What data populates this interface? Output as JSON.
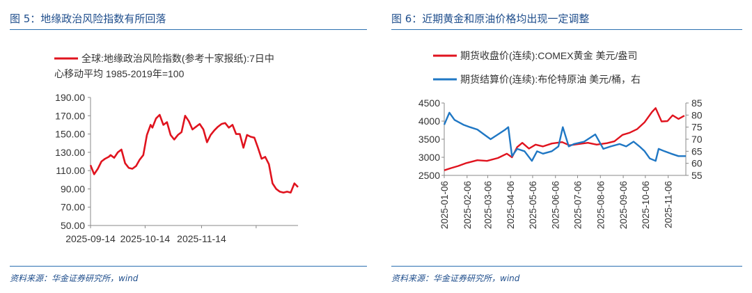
{
  "figures": [
    {
      "title": "图 5：地缘政治风险指数有所回落",
      "source": "资料来源：华金证券研究所，wind"
    },
    {
      "title": "图 6：近期黄金和原油价格均出现一定调整",
      "source": "资料来源：华金证券研究所，wind"
    }
  ],
  "chart_data": [
    {
      "type": "line",
      "title": "",
      "legend_placement": "top",
      "series": [
        {
          "name": "全球:地缘政治风险指数(参考十家报纸):7日中心移动平均 1985-2019年=100",
          "name_lines": [
            "全球:地缘政治风险指数(参考十家报纸):7日中",
            "心移动平均 1985-2019年=100"
          ],
          "color": "#e0131e",
          "points": [
            [
              "2025-09-14",
              116
            ],
            [
              "2025-09-16",
              106
            ],
            [
              "2025-09-18",
              112
            ],
            [
              "2025-09-20",
              120
            ],
            [
              "2025-09-22",
              123
            ],
            [
              "2025-09-24",
              125
            ],
            [
              "2025-09-25",
              127
            ],
            [
              "2025-09-27",
              124
            ],
            [
              "2025-09-29",
              130
            ],
            [
              "2025-10-01",
              133
            ],
            [
              "2025-10-03",
              118
            ],
            [
              "2025-10-05",
              113
            ],
            [
              "2025-10-07",
              112
            ],
            [
              "2025-10-09",
              115
            ],
            [
              "2025-10-11",
              122
            ],
            [
              "2025-10-13",
              127
            ],
            [
              "2025-10-15",
              149
            ],
            [
              "2025-10-17",
              160
            ],
            [
              "2025-10-18",
              157
            ],
            [
              "2025-10-20",
              167
            ],
            [
              "2025-10-22",
              171
            ],
            [
              "2025-10-24",
              160
            ],
            [
              "2025-10-26",
              163
            ],
            [
              "2025-10-28",
              149
            ],
            [
              "2025-10-30",
              144
            ],
            [
              "2025-11-01",
              149
            ],
            [
              "2025-11-03",
              152
            ],
            [
              "2025-11-05",
              170
            ],
            [
              "2025-11-07",
              164
            ],
            [
              "2025-11-09",
              155
            ],
            [
              "2025-11-11",
              158
            ],
            [
              "2025-11-13",
              161
            ],
            [
              "2025-11-15",
              155
            ],
            [
              "2025-11-17",
              141
            ],
            [
              "2025-11-19",
              149
            ],
            [
              "2025-11-21",
              154
            ],
            [
              "2025-11-23",
              158
            ],
            [
              "2025-11-25",
              161
            ],
            [
              "2025-11-27",
              162
            ],
            [
              "2025-11-29",
              157
            ],
            [
              "2025-12-01",
              160
            ],
            [
              "2025-12-03",
              150
            ],
            [
              "2025-12-05",
              150
            ],
            [
              "2025-12-07",
              135
            ],
            [
              "2025-12-09",
              149
            ],
            [
              "2025-12-11",
              147
            ],
            [
              "2025-12-13",
              146
            ],
            [
              "2025-12-15",
              135
            ],
            [
              "2025-12-17",
              123
            ],
            [
              "2025-12-19",
              125
            ],
            [
              "2025-12-21",
              117
            ],
            [
              "2025-12-23",
              96
            ],
            [
              "2025-12-25",
              90
            ],
            [
              "2025-12-27",
              87
            ],
            [
              "2025-12-29",
              86
            ],
            [
              "2025-12-31",
              87
            ],
            [
              "2026-01-02",
              86
            ],
            [
              "2026-01-04",
              96
            ],
            [
              "2026-01-06",
              92
            ]
          ]
        }
      ],
      "x_ticks": [
        "2025-09-14",
        "2025-10-14",
        "2025-11-14"
      ],
      "ylim": [
        50,
        190
      ],
      "y_ticks": [
        "190.00",
        "170.00",
        "150.00",
        "130.00",
        "110.00",
        "90.00",
        "70.00",
        "50.00"
      ],
      "grid": false
    },
    {
      "type": "line",
      "title": "",
      "legend_placement": "top",
      "series": [
        {
          "name": "期货收盘价(连续):COMEX黄金 美元/盎司",
          "color": "#e0131e",
          "axis": "left",
          "points": [
            [
              "2025-01-06",
              2640
            ],
            [
              "2025-01-15",
              2700
            ],
            [
              "2025-01-25",
              2760
            ],
            [
              "2025-02-05",
              2840
            ],
            [
              "2025-02-20",
              2920
            ],
            [
              "2025-03-05",
              2900
            ],
            [
              "2025-03-20",
              2980
            ],
            [
              "2025-04-01",
              3100
            ],
            [
              "2025-04-08",
              3000
            ],
            [
              "2025-04-15",
              3280
            ],
            [
              "2025-04-22",
              3400
            ],
            [
              "2025-05-01",
              3240
            ],
            [
              "2025-05-10",
              3350
            ],
            [
              "2025-05-20",
              3300
            ],
            [
              "2025-06-01",
              3380
            ],
            [
              "2025-06-15",
              3420
            ],
            [
              "2025-06-25",
              3330
            ],
            [
              "2025-07-05",
              3360
            ],
            [
              "2025-07-20",
              3400
            ],
            [
              "2025-08-01",
              3350
            ],
            [
              "2025-08-15",
              3390
            ],
            [
              "2025-08-25",
              3440
            ],
            [
              "2025-09-05",
              3620
            ],
            [
              "2025-09-15",
              3680
            ],
            [
              "2025-09-25",
              3780
            ],
            [
              "2025-10-05",
              3970
            ],
            [
              "2025-10-15",
              4250
            ],
            [
              "2025-10-20",
              4360
            ],
            [
              "2025-10-28",
              3990
            ],
            [
              "2025-11-05",
              4000
            ],
            [
              "2025-11-12",
              4160
            ],
            [
              "2025-11-20",
              4060
            ],
            [
              "2025-11-28",
              4150
            ]
          ]
        },
        {
          "name": "期货结算价(连续):布伦特原油 美元/桶，右",
          "color": "#1f77c4",
          "axis": "right",
          "points": [
            [
              "2025-01-06",
              76
            ],
            [
              "2025-01-13",
              81
            ],
            [
              "2025-01-20",
              78
            ],
            [
              "2025-02-01",
              76
            ],
            [
              "2025-02-10",
              75
            ],
            [
              "2025-02-20",
              74
            ],
            [
              "2025-03-01",
              72
            ],
            [
              "2025-03-10",
              70
            ],
            [
              "2025-03-20",
              72
            ],
            [
              "2025-03-30",
              74
            ],
            [
              "2025-04-03",
              75
            ],
            [
              "2025-04-08",
              63
            ],
            [
              "2025-04-15",
              66
            ],
            [
              "2025-04-25",
              65
            ],
            [
              "2025-05-05",
              61
            ],
            [
              "2025-05-12",
              65
            ],
            [
              "2025-05-20",
              64
            ],
            [
              "2025-06-01",
              65
            ],
            [
              "2025-06-10",
              67
            ],
            [
              "2025-06-16",
              75
            ],
            [
              "2025-06-24",
              67
            ],
            [
              "2025-07-01",
              68
            ],
            [
              "2025-07-15",
              69
            ],
            [
              "2025-07-30",
              72
            ],
            [
              "2025-08-10",
              66
            ],
            [
              "2025-08-20",
              67
            ],
            [
              "2025-09-01",
              68
            ],
            [
              "2025-09-10",
              67
            ],
            [
              "2025-09-20",
              69
            ],
            [
              "2025-09-28",
              67
            ],
            [
              "2025-10-05",
              65
            ],
            [
              "2025-10-12",
              62
            ],
            [
              "2025-10-20",
              61
            ],
            [
              "2025-10-24",
              66
            ],
            [
              "2025-11-01",
              65
            ],
            [
              "2025-11-10",
              64
            ],
            [
              "2025-11-20",
              63
            ],
            [
              "2025-11-30",
              63
            ]
          ]
        }
      ],
      "x_ticks": [
        "2025-01-06",
        "2025-02-06",
        "2025-03-06",
        "2025-04-06",
        "2025-05-06",
        "2025-06-06",
        "2025-07-06",
        "2025-08-06",
        "2025-09-06",
        "2025-10-06",
        "2025-11-06"
      ],
      "ylim_left": [
        2500,
        4500
      ],
      "y_ticks_left": [
        "4500",
        "4000",
        "3500",
        "3000",
        "2500"
      ],
      "ylim_right": [
        55,
        85
      ],
      "y_ticks_right": [
        "85",
        "80",
        "75",
        "70",
        "65",
        "60",
        "55"
      ],
      "grid": false
    }
  ]
}
